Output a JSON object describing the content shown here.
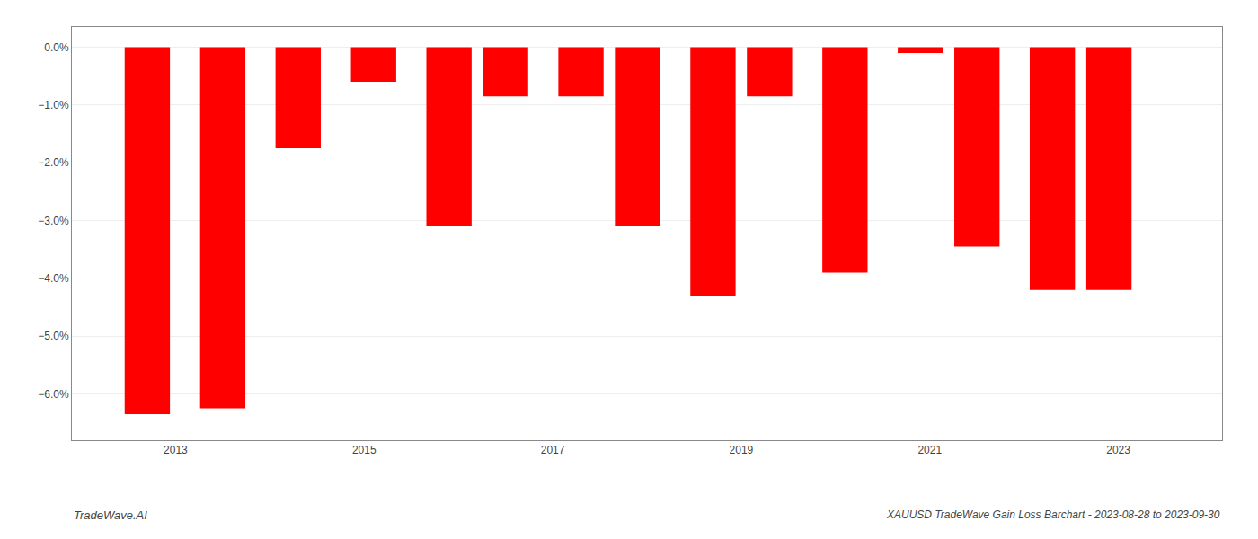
{
  "chart_data": {
    "type": "bar",
    "title": "XAUUSD TradeWave Gain Loss Barchart - 2023-08-28 to 2023-09-30",
    "annotations": [
      "TradeWave.AI"
    ],
    "x": [
      2012.7,
      2013.5,
      2014.3,
      2015.1,
      2015.9,
      2016.5,
      2017.3,
      2017.9,
      2018.7,
      2019.3,
      2020.1,
      2020.9,
      2021.5,
      2022.3,
      2022.9
    ],
    "values": [
      -6.35,
      -6.25,
      -1.75,
      -0.6,
      -3.1,
      -0.85,
      -0.85,
      -3.1,
      -4.3,
      -0.85,
      -3.9,
      -0.1,
      -3.45,
      -4.2,
      -4.2
    ],
    "color": "#ff0000",
    "xlim": [
      2011.9,
      2024.1
    ],
    "xticks": [
      2013,
      2015,
      2017,
      2019,
      2021,
      2023
    ],
    "ylim": [
      -6.8,
      0.35
    ],
    "yticks": [
      {
        "value": 0.0,
        "label": "0.0%"
      },
      {
        "value": -1.0,
        "label": "−1.0%"
      },
      {
        "value": -2.0,
        "label": "−2.0%"
      },
      {
        "value": -3.0,
        "label": "−3.0%"
      },
      {
        "value": -4.0,
        "label": "−4.0%"
      },
      {
        "value": -5.0,
        "label": "−5.0%"
      },
      {
        "value": -6.0,
        "label": "−6.0%"
      }
    ],
    "grid": true
  }
}
